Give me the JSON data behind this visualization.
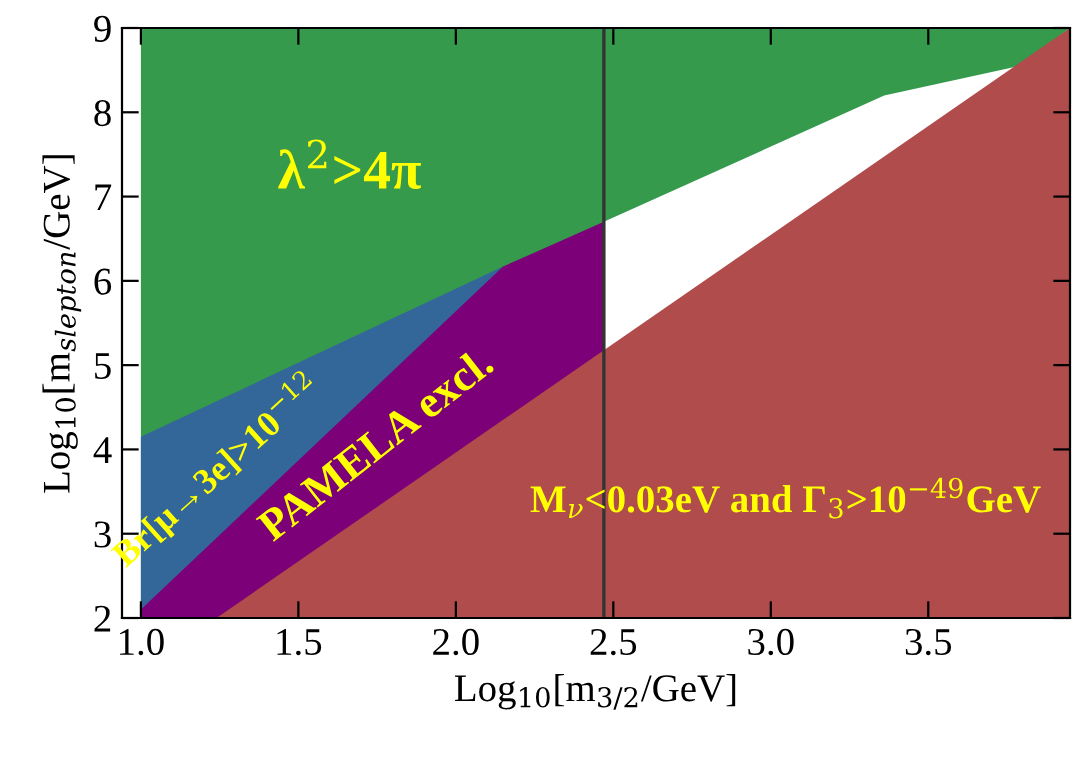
{
  "chart_data": {
    "type": "area",
    "xlabel": "Log$_{10}$[m$_{3/2}$/GeV]",
    "ylabel": "Log$_{10}$[m$_{slepton}$/GeV]",
    "xlim": [
      0.94,
      3.95
    ],
    "ylim": [
      2,
      9
    ],
    "xticks": [
      {
        "value": 1,
        "label": "1.0"
      },
      {
        "value": 1.5,
        "label": "1.5"
      },
      {
        "value": 2,
        "label": "2.0"
      },
      {
        "value": 2.5,
        "label": "2.5"
      },
      {
        "value": 3,
        "label": "3.0"
      },
      {
        "value": 3.5,
        "label": "3.5"
      }
    ],
    "yticks": [
      2,
      3,
      4,
      5,
      6,
      7,
      8,
      9
    ],
    "grid": false,
    "series": [
      {
        "color": "#369a4d",
        "x": [
          1.0,
          3.95
        ],
        "values": [
          9,
          9
        ]
      },
      {
        "color": "#ffffff",
        "x": [
          2.47,
          3.36,
          3.79,
          3.95
        ],
        "values": [
          6.7,
          8.2,
          8.55,
          9
        ]
      },
      {
        "color": "#336699",
        "x": [
          1.0,
          2.15
        ],
        "values": [
          4.15,
          6.17
        ]
      },
      {
        "color": "#7c0078",
        "x": [
          1.0,
          1.24,
          2.15,
          2.47
        ],
        "values": [
          2.1,
          2.95,
          6.17,
          6.7
        ]
      },
      {
        "color": "#b04c4c",
        "x": [
          1.24,
          3.95
        ],
        "values": [
          2,
          9
        ]
      }
    ],
    "ref_lines": [
      {
        "axis": "x",
        "value": 2.47,
        "color": "#333333"
      }
    ],
    "annotations": [
      "λ$^{2}$>4π",
      "Br[μ→3e]>10$^{−12}$",
      "PAMELA excl.",
      "M$_{ν}$<0.03eV and Γ$_{3}$>10$^{−49}$GeV"
    ]
  }
}
